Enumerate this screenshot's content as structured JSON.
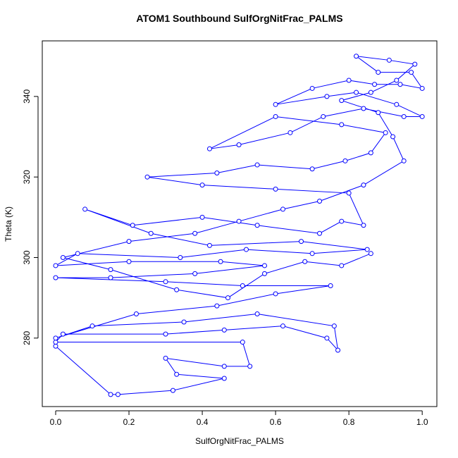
{
  "chart_data": {
    "type": "scatter-line",
    "title": "ATOM1 Southbound SulfOrgNitFrac_PALMS",
    "x_label": "SulfOrgNitFrac_PALMS",
    "y_label": "Theta (K)",
    "xlim": [
      -0.0365,
      1.04
    ],
    "ylim": [
      263.0,
      353.8
    ],
    "xticks": [
      {
        "value": 0,
        "label": "0.0"
      },
      {
        "value": 0.2,
        "label": "0.2"
      },
      {
        "value": 0.4,
        "label": "0.4"
      },
      {
        "value": 0.6,
        "label": "0.6"
      },
      {
        "value": 0.8,
        "label": "0.8"
      },
      {
        "value": 1,
        "label": "1.0"
      }
    ],
    "yticks": [
      280,
      300,
      320,
      340
    ],
    "color": "#0000ff",
    "x": [
      0.0,
      0.15,
      0.17,
      0.32,
      0.46,
      0.33,
      0.3,
      0.46,
      0.53,
      0.51,
      0.0,
      0.02,
      0.3,
      0.46,
      0.62,
      0.74,
      0.77,
      0.76,
      0.55,
      0.35,
      0.1,
      0.0,
      0.22,
      0.44,
      0.6,
      0.75,
      0.51,
      0.3,
      0.0,
      0.15,
      0.38,
      0.57,
      0.45,
      0.2,
      0.0,
      0.06,
      0.34,
      0.52,
      0.7,
      0.85,
      0.67,
      0.42,
      0.26,
      0.08,
      0.21,
      0.4,
      0.55,
      0.72,
      0.78,
      0.84,
      0.8,
      0.6,
      0.4,
      0.25,
      0.44,
      0.55,
      0.7,
      0.79,
      0.86,
      0.9,
      0.78,
      0.6,
      0.42,
      0.5,
      0.64,
      0.73,
      0.84,
      0.95,
      1.0,
      0.93,
      0.82,
      0.74,
      0.6,
      0.7,
      0.8,
      0.87,
      0.94,
      1.0,
      0.97,
      0.88,
      0.82,
      0.91,
      0.98,
      0.93,
      0.86,
      0.78,
      0.88,
      0.92,
      0.95,
      0.84,
      0.72,
      0.62,
      0.5,
      0.38,
      0.2,
      0.02,
      0.15,
      0.33,
      0.47,
      0.57,
      0.68,
      0.78,
      0.86
    ],
    "y": [
      278,
      266,
      266,
      267,
      270,
      271,
      275,
      273,
      273,
      279,
      279,
      281,
      281,
      282,
      283,
      280,
      277,
      283,
      286,
      284,
      283,
      280,
      286,
      288,
      291,
      293,
      293,
      294,
      295,
      295,
      296,
      298,
      299,
      299,
      298,
      301,
      300,
      302,
      301,
      302,
      304,
      303,
      306,
      312,
      308,
      310,
      308,
      306,
      309,
      308,
      316,
      317,
      318,
      320,
      321,
      323,
      322,
      324,
      326,
      331,
      333,
      335,
      327,
      328,
      331,
      335,
      337,
      335,
      335,
      338,
      341,
      340,
      338,
      342,
      344,
      343,
      343,
      342,
      346,
      346,
      350,
      349,
      348,
      344,
      341,
      339,
      336,
      330,
      324,
      318,
      314,
      312,
      309,
      306,
      304,
      300,
      297,
      292,
      290,
      296,
      299,
      298,
      301
    ]
  }
}
